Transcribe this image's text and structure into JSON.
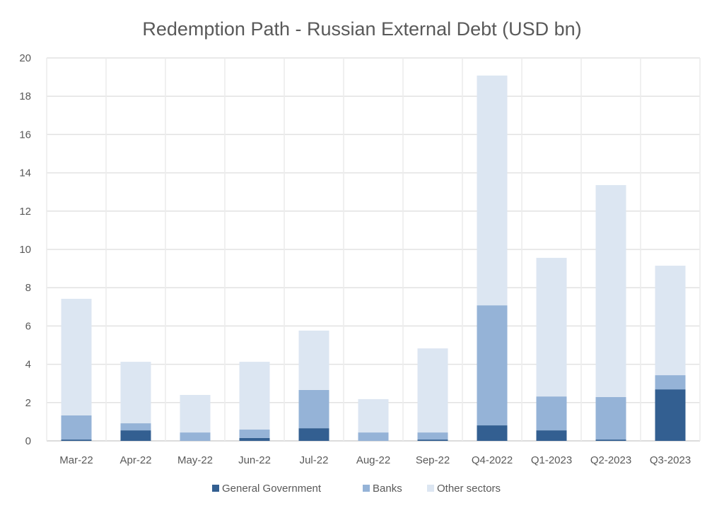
{
  "chart_data": {
    "type": "bar",
    "stacked": true,
    "title": "Redemption Path - Russian External Debt (USD bn)",
    "xlabel": "",
    "ylabel": "",
    "ylim": [
      0,
      20
    ],
    "yticks": [
      0,
      2,
      4,
      6,
      8,
      10,
      12,
      14,
      16,
      18,
      20
    ],
    "grid": true,
    "legend_position": "bottom",
    "categories": [
      "Mar-22",
      "Apr-22",
      "May-22",
      "Jun-22",
      "Jul-22",
      "Aug-22",
      "Sep-22",
      "Q4-2022",
      "Q1-2023",
      "Q2-2023",
      "Q3-2023"
    ],
    "series": [
      {
        "name": "General Government",
        "color": "#335f91",
        "values": [
          0.07,
          0.55,
          0,
          0.15,
          0.66,
          0,
          0.07,
          0.81,
          0.55,
          0.07,
          2.69
        ]
      },
      {
        "name": "Banks",
        "color": "#95b3d7",
        "values": [
          1.26,
          0.37,
          0.44,
          0.44,
          2.0,
          0.44,
          0.37,
          6.27,
          1.77,
          2.22,
          0.74
        ]
      },
      {
        "name": "Other sectors",
        "color": "#dce6f2",
        "values": [
          6.09,
          3.21,
          1.96,
          3.54,
          3.1,
          1.74,
          4.39,
          12.0,
          7.24,
          11.07,
          5.72
        ]
      }
    ]
  }
}
